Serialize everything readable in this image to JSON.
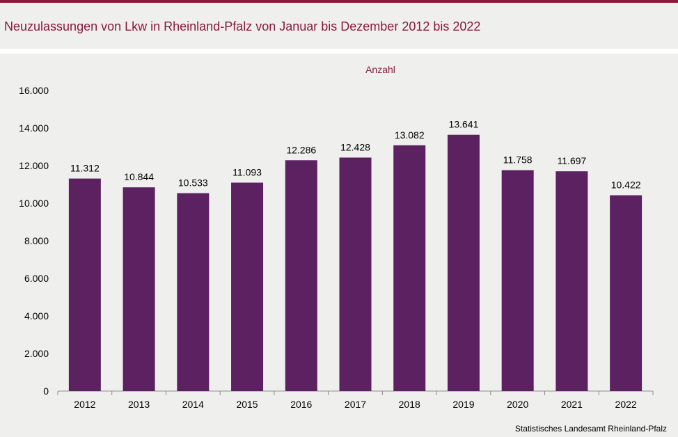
{
  "header": {
    "title": "Neuzulassungen von Lkw in Rheinland-Pfalz von Januar bis Dezember 2012 bis 2022"
  },
  "footer": {
    "source": "Statistisches Landesamt  Rheinland-Pfalz"
  },
  "colors": {
    "accent": "#8b1a3a",
    "bar": "#5b2161",
    "background": "#efefee"
  },
  "chart_data": {
    "type": "bar",
    "title": "Neuzulassungen von Lkw in Rheinland-Pfalz von Januar bis Dezember 2012 bis 2022",
    "ylabel": "Anzahl",
    "xlabel": "",
    "categories": [
      "2012",
      "2013",
      "2014",
      "2015",
      "2016",
      "2017",
      "2018",
      "2019",
      "2020",
      "2021",
      "2022"
    ],
    "values": [
      11312,
      10844,
      10533,
      11093,
      12286,
      12428,
      13082,
      13641,
      11758,
      11697,
      10422
    ],
    "value_labels": [
      "11.312",
      "10.844",
      "10.533",
      "11.093",
      "12.286",
      "12.428",
      "13.082",
      "13.641",
      "11.758",
      "11.697",
      "10.422"
    ],
    "ylim": [
      0,
      16000
    ],
    "yticks": [
      0,
      2000,
      4000,
      6000,
      8000,
      10000,
      12000,
      14000,
      16000
    ],
    "ytick_labels": [
      "0",
      "2.000",
      "4.000",
      "6.000",
      "8.000",
      "10.000",
      "12.000",
      "14.000",
      "16.000"
    ],
    "grid": false,
    "legend": "none"
  }
}
